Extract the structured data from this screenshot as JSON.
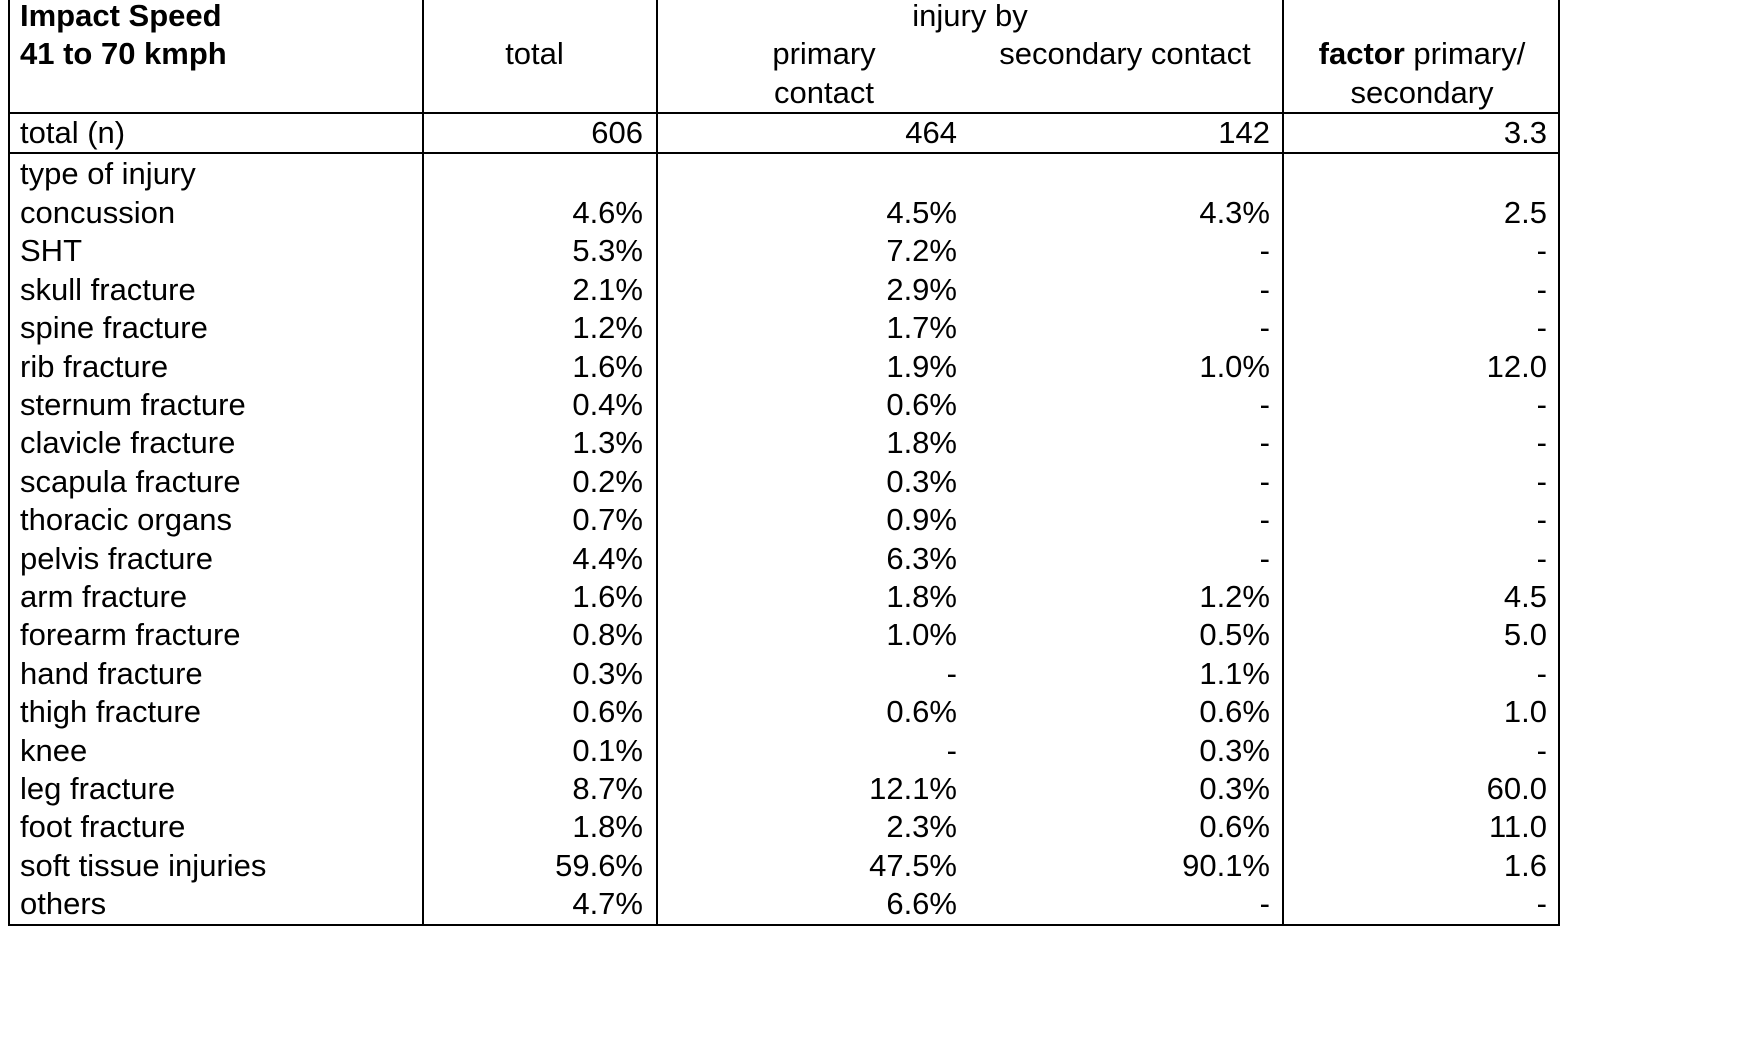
{
  "header": {
    "title_line1": "Impact Speed",
    "title_line2": "41 to 70 kmph",
    "total": "total",
    "injury_by": "injury by",
    "primary_line1": "primary",
    "primary_line2": "contact",
    "secondary": "secondary contact",
    "factor_bold": "factor",
    "factor_rest": " primary/",
    "factor_line2": "secondary"
  },
  "totals": {
    "label": "total (n)",
    "total": "606",
    "primary": "464",
    "secondary": "142",
    "factor": "3.3"
  },
  "section_label": "type of injury",
  "rows": [
    {
      "label": "concussion",
      "total": "4.6%",
      "primary": "4.5%",
      "secondary": "4.3%",
      "factor": "2.5"
    },
    {
      "label": "SHT",
      "total": "5.3%",
      "primary": "7.2%",
      "secondary": "-",
      "factor": "-"
    },
    {
      "label": "skull fracture",
      "total": "2.1%",
      "primary": "2.9%",
      "secondary": "-",
      "factor": "-"
    },
    {
      "label": "spine fracture",
      "total": "1.2%",
      "primary": "1.7%",
      "secondary": "-",
      "factor": "-"
    },
    {
      "label": "rib fracture",
      "total": "1.6%",
      "primary": "1.9%",
      "secondary": "1.0%",
      "factor": "12.0"
    },
    {
      "label": "sternum fracture",
      "total": "0.4%",
      "primary": "0.6%",
      "secondary": "-",
      "factor": "-"
    },
    {
      "label": "clavicle fracture",
      "total": "1.3%",
      "primary": "1.8%",
      "secondary": "-",
      "factor": "-"
    },
    {
      "label": "scapula fracture",
      "total": "0.2%",
      "primary": "0.3%",
      "secondary": "-",
      "factor": "-"
    },
    {
      "label": "thoracic organs",
      "total": "0.7%",
      "primary": "0.9%",
      "secondary": "-",
      "factor": "-"
    },
    {
      "label": "pelvis fracture",
      "total": "4.4%",
      "primary": "6.3%",
      "secondary": "-",
      "factor": "-"
    },
    {
      "label": "arm fracture",
      "total": "1.6%",
      "primary": "1.8%",
      "secondary": "1.2%",
      "factor": "4.5"
    },
    {
      "label": "forearm fracture",
      "total": "0.8%",
      "primary": "1.0%",
      "secondary": "0.5%",
      "factor": "5.0"
    },
    {
      "label": "hand fracture",
      "total": "0.3%",
      "primary": "-",
      "secondary": "1.1%",
      "factor": "-"
    },
    {
      "label": "thigh fracture",
      "total": "0.6%",
      "primary": "0.6%",
      "secondary": "0.6%",
      "factor": "1.0"
    },
    {
      "label": "knee",
      "total": "0.1%",
      "primary": "-",
      "secondary": "0.3%",
      "factor": "-"
    },
    {
      "label": "leg fracture",
      "total": "8.7%",
      "primary": "12.1%",
      "secondary": "0.3%",
      "factor": "60.0"
    },
    {
      "label": "foot fracture",
      "total": "1.8%",
      "primary": "2.3%",
      "secondary": "0.6%",
      "factor": "11.0"
    },
    {
      "label": "soft tissue injuries",
      "total": "59.6%",
      "primary": "47.5%",
      "secondary": "90.1%",
      "factor": "1.6"
    },
    {
      "label": "others",
      "total": "4.7%",
      "primary": "6.6%",
      "secondary": "-",
      "factor": "-"
    }
  ]
}
